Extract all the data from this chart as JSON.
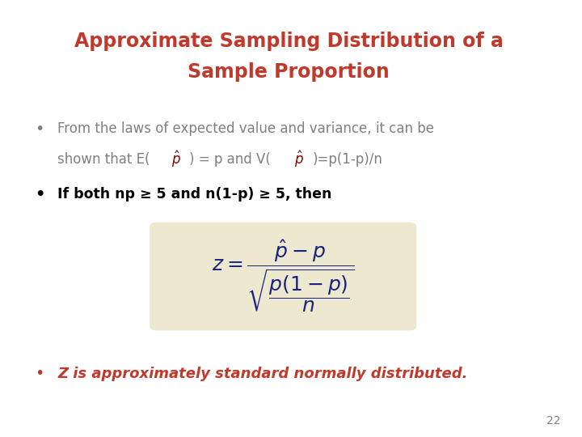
{
  "title_line1": "Approximate Sampling Distribution of a",
  "title_line2": "Sample Proportion",
  "title_color": "#C0392B",
  "bullet1_part1": "From the laws of expected value and variance, it can be",
  "bullet1_part2_prefix": "shown that E(",
  "bullet1_part2_mid": ") = p and V(",
  "bullet1_part2_suffix": ")=p(1-p)/n",
  "bullet2": "If both np ≥ 5 and n(1-p) ≥ 5, then",
  "bullet3": "Z is approximately standard normally distributed.",
  "bullet1_color": "#7f7f7f",
  "bullet2_color": "#000000",
  "bullet3_color": "#C0392B",
  "phat_color": "#8B0000",
  "formula_bg": "#EDE8D0",
  "formula_color": "#1a237e",
  "page_number": "22",
  "background_color": "#FFFFFF"
}
